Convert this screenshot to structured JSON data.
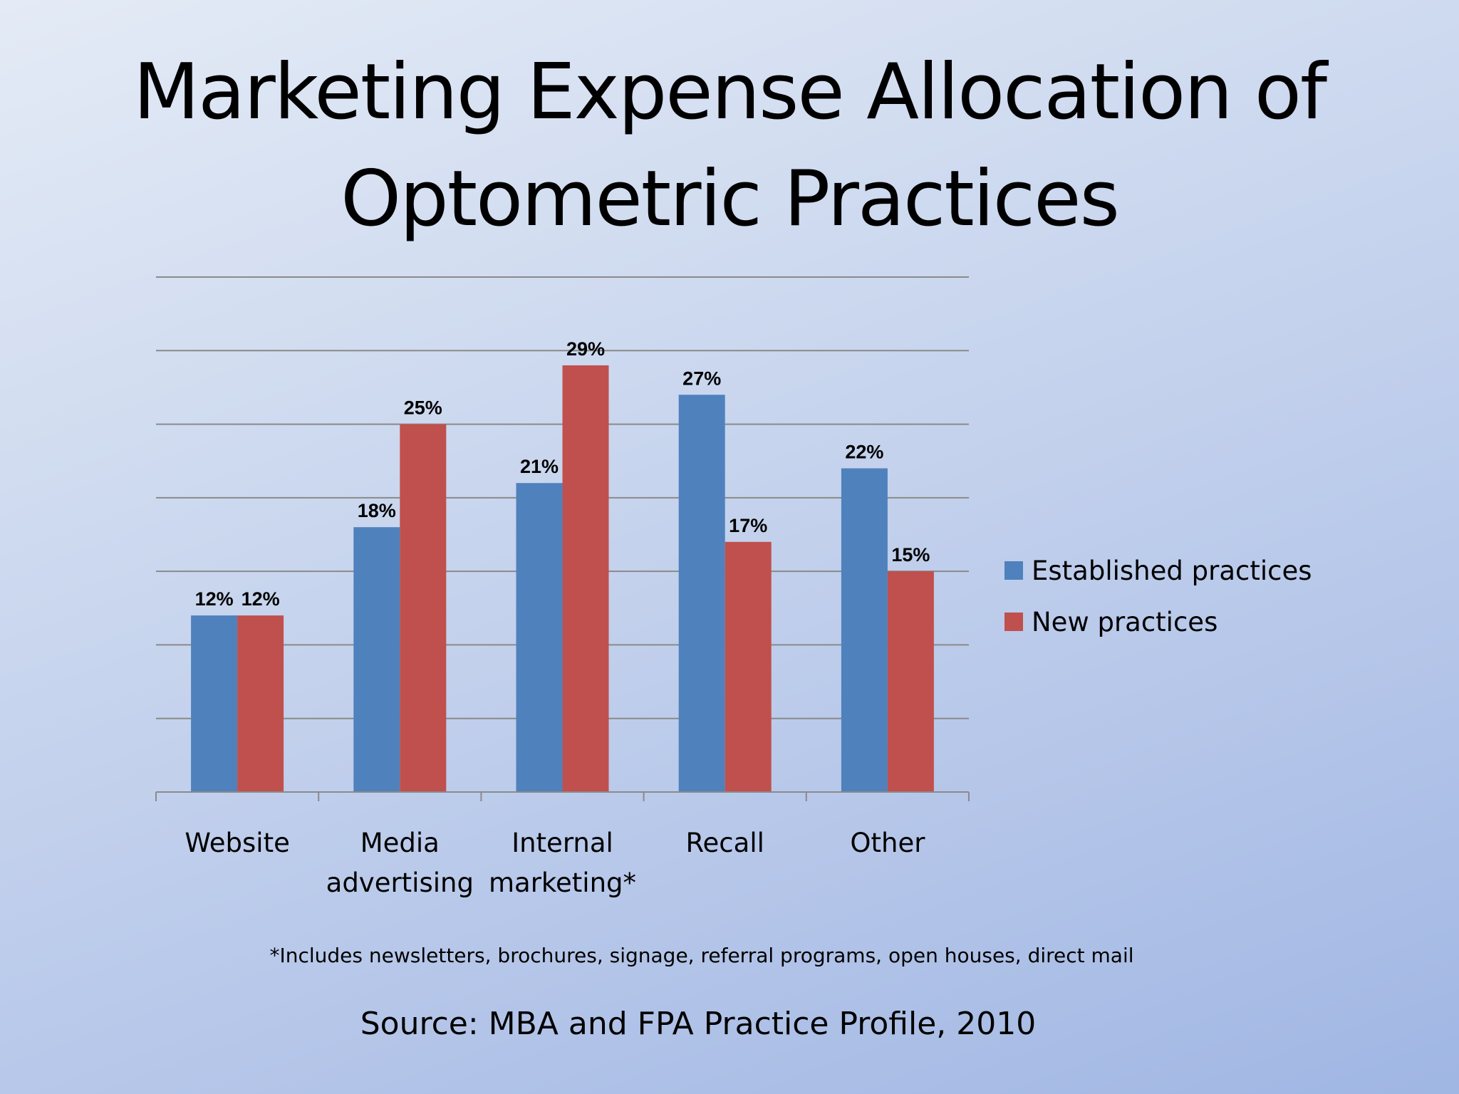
{
  "slide": {
    "title_line1": "Marketing Expense Allocation of",
    "title_line2": "Optometric Practices",
    "footnote": "*Includes newsletters, brochures, signage, referral programs, open houses, direct mail",
    "source": "Source: MBA and FPA Practice Profile, 2010"
  },
  "chart_data": {
    "type": "bar",
    "title": "",
    "xlabel": "",
    "ylabel": "",
    "categories": [
      [
        "Website"
      ],
      [
        "Media",
        "advertising"
      ],
      [
        "Internal",
        "marketing*"
      ],
      [
        "Recall"
      ],
      [
        "Other"
      ]
    ],
    "series": [
      {
        "name": "Established practices",
        "color": "#4f81bd",
        "values": [
          12,
          18,
          21,
          27,
          22
        ],
        "labels": [
          "12%",
          "18%",
          "21%",
          "27%",
          "22%"
        ]
      },
      {
        "name": "New practices",
        "color": "#c0504d",
        "values": [
          12,
          25,
          29,
          17,
          15
        ],
        "labels": [
          "12%",
          "25%",
          "29%",
          "17%",
          "15%"
        ]
      }
    ],
    "ylim": [
      0,
      35
    ],
    "ytick_step": 5,
    "grid": true,
    "legend": "right"
  }
}
